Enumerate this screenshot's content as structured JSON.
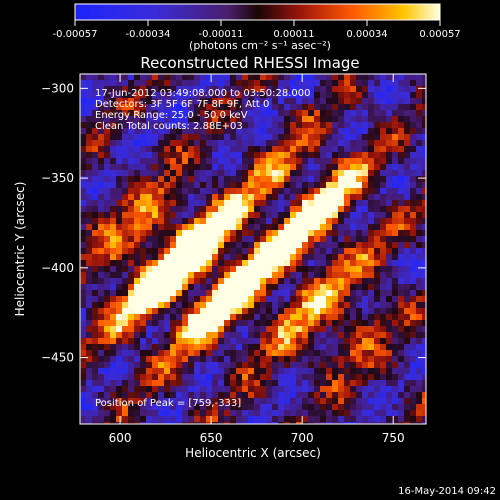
{
  "chart_data": {
    "type": "heatmap",
    "title": "Reconstructed RHESSI Image",
    "xlabel": "Heliocentric X (arcsec)",
    "ylabel": "Heliocentric Y (arcsec)",
    "xlim": [
      578,
      768
    ],
    "ylim": [
      -487,
      -292
    ],
    "x_ticks": [
      600,
      650,
      700,
      750
    ],
    "y_ticks": [
      -300,
      -350,
      -400,
      -450
    ],
    "annotations": [
      "17-Jun-2012 03:49:08.000 to 03:50:28.000",
      "Detectors: 3F 5F 6F 7F 8F 9F, Att 0",
      "Energy Range: 25.0 - 50.0 keV",
      "Clean     Total counts: 2.88E+03"
    ],
    "peak_label": "Position of Peak = [759,-333]",
    "colorbar": {
      "ticks": [
        "-0.00057",
        "-0.00034",
        "-0.00011",
        "0.00011",
        "0.00034",
        "0.00057"
      ],
      "unit": "(photons cm⁻² s⁻¹ asec⁻²)",
      "range": [
        -0.00057,
        0.00057
      ]
    },
    "footer": "16-May-2014 09:42"
  }
}
